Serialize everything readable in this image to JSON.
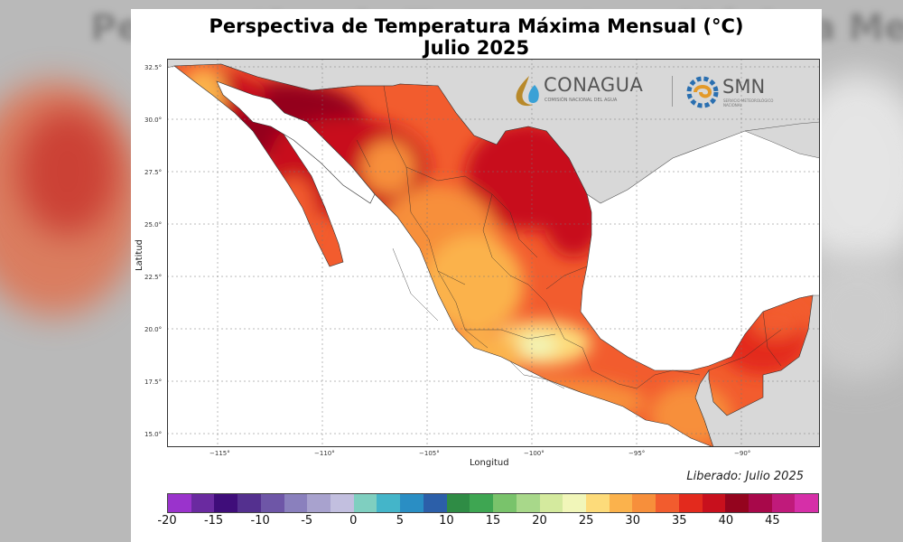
{
  "title_line1": "Perspectiva de Temperatura Máxima Mensual (°C)",
  "title_line2": "Julio 2025",
  "released": "Liberado: Julio 2025",
  "map": {
    "xlabel": "Longitud",
    "ylabel": "Latitud",
    "lon_ticks": [
      "−115°",
      "−110°",
      "−105°",
      "−100°",
      "−95°",
      "−90°"
    ],
    "lat_ticks": [
      "32.5°",
      "30.0°",
      "27.5°",
      "25.0°",
      "22.5°",
      "20.0°",
      "17.5°",
      "15.0°"
    ],
    "lon_range": [
      -118,
      -86.5
    ],
    "lat_range": [
      14.5,
      33
    ],
    "land_color": "#d8d8d8",
    "ocean_color": "#ffffff"
  },
  "logos": {
    "conagua": "CONAGUA",
    "conagua_sub": "COMISIÓN NACIONAL DEL AGUA",
    "smn": "SMN",
    "smn_sub": "SERVICIO METEOROLÓGICO NACIONAL"
  },
  "colorbar": {
    "labels": [
      "-20",
      "-15",
      "-10",
      "-5",
      "0",
      "5",
      "10",
      "15",
      "20",
      "25",
      "30",
      "35",
      "40",
      "45"
    ],
    "colors": [
      "#9a33cc",
      "#6a2aa0",
      "#3f0d7a",
      "#54308f",
      "#6e56a7",
      "#8a80bd",
      "#a8a2ce",
      "#c2bfdf",
      "#7fcfc0",
      "#44b5c9",
      "#2a8ec4",
      "#2c5fa9",
      "#2f8c45",
      "#3ea652",
      "#79c36b",
      "#a8d88a",
      "#d4ea9e",
      "#f1f6b9",
      "#fddb7a",
      "#fbb24c",
      "#f78f3b",
      "#f25c2e",
      "#e32a1d",
      "#c8101d",
      "#94041e",
      "#a8084a",
      "#c01a7b",
      "#d62fa8"
    ]
  }
}
